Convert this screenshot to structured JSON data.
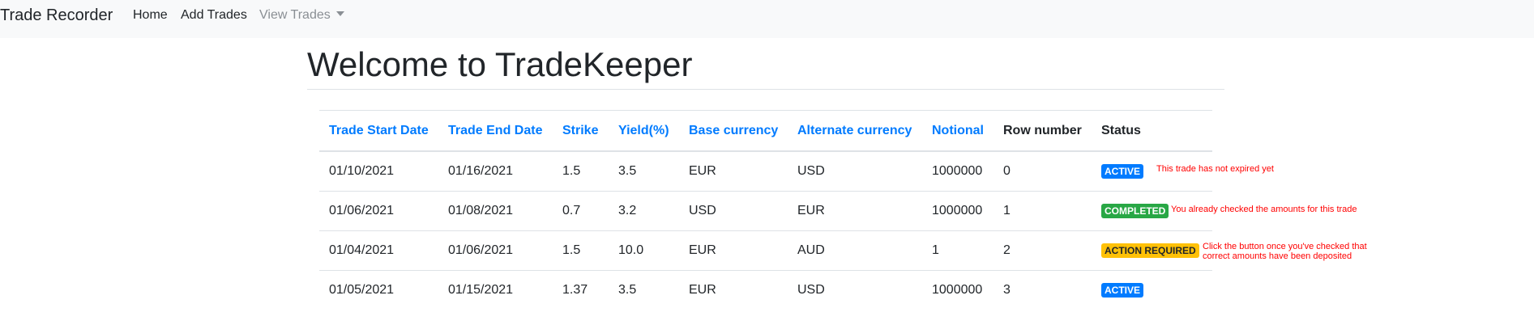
{
  "navbar": {
    "brand": "Trade Recorder",
    "links": [
      "Home",
      "Add Trades",
      "View Trades"
    ]
  },
  "page": {
    "title": "Welcome to TradeKeeper"
  },
  "table": {
    "headers": [
      "Trade Start Date",
      "Trade End Date",
      "Strike",
      "Yield(%)",
      "Base currency",
      "Alternate currency",
      "Notional",
      "Row number",
      "Status"
    ],
    "rows": [
      {
        "start": "01/10/2021",
        "end": "01/16/2021",
        "strike": "1.5",
        "yield": "3.5",
        "base": "EUR",
        "alt": "USD",
        "notional": "1000000",
        "row": "0",
        "status": "ACTIVE",
        "note": "This trade has not expired yet"
      },
      {
        "start": "01/06/2021",
        "end": "01/08/2021",
        "strike": "0.7",
        "yield": "3.2",
        "base": "USD",
        "alt": "EUR",
        "notional": "1000000",
        "row": "1",
        "status": "COMPLETED",
        "note": "You already checked the amounts for this trade"
      },
      {
        "start": "01/04/2021",
        "end": "01/06/2021",
        "strike": "1.5",
        "yield": "10.0",
        "base": "EUR",
        "alt": "AUD",
        "notional": "1",
        "row": "2",
        "status": "ACTION REQUIRED",
        "note_lines": [
          "Click the button once you've checked that",
          "correct amounts have been deposited"
        ]
      },
      {
        "start": "01/05/2021",
        "end": "01/15/2021",
        "strike": "1.37",
        "yield": "3.5",
        "base": "EUR",
        "alt": "USD",
        "notional": "1000000",
        "row": "3",
        "status": "ACTIVE"
      }
    ]
  },
  "colors": {
    "link_blue": "#007bff",
    "active_badge": "#007bff",
    "completed_badge": "#28a745",
    "action_required_badge": "#ffc107",
    "note_red": "#ff0000",
    "navbar_bg": "#f8f9fa"
  }
}
